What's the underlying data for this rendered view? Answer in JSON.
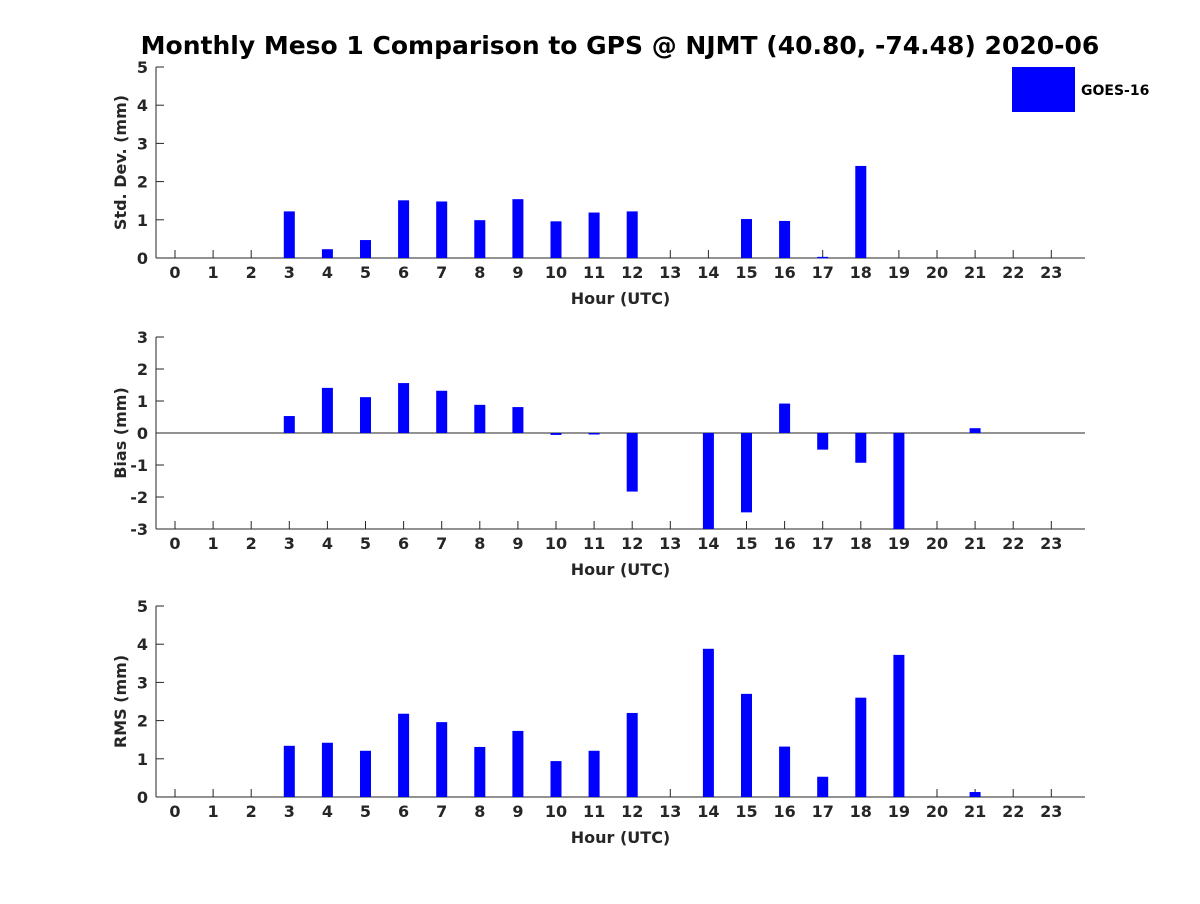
{
  "title": "Monthly Meso 1 Comparison to GPS @ NJMT (40.80, -74.48) 2020-06",
  "legend": {
    "label": "GOES-16",
    "color": "#0000ff"
  },
  "chart_data": [
    {
      "type": "bar",
      "ylabel": "Std. Dev. (mm)",
      "xlabel": "Hour (UTC)",
      "ylim": [
        0,
        5
      ],
      "yticks": [
        0,
        1,
        2,
        3,
        4,
        5
      ],
      "categories": [
        "0",
        "1",
        "2",
        "3",
        "4",
        "5",
        "6",
        "7",
        "8",
        "9",
        "10",
        "11",
        "12",
        "13",
        "14",
        "15",
        "16",
        "17",
        "18",
        "19",
        "20",
        "21",
        "22",
        "23"
      ],
      "series": [
        {
          "name": "GOES-16",
          "values": [
            null,
            null,
            null,
            1.22,
            0.23,
            0.47,
            1.51,
            1.48,
            0.99,
            1.54,
            0.96,
            1.19,
            1.22,
            null,
            null,
            1.02,
            0.97,
            0.03,
            2.41,
            null,
            null,
            null,
            null,
            null
          ]
        }
      ]
    },
    {
      "type": "bar",
      "ylabel": "Bias (mm)",
      "xlabel": "Hour (UTC)",
      "ylim": [
        -3,
        3
      ],
      "yticks": [
        -3,
        -2,
        -1,
        0,
        1,
        2,
        3
      ],
      "categories": [
        "0",
        "1",
        "2",
        "3",
        "4",
        "5",
        "6",
        "7",
        "8",
        "9",
        "10",
        "11",
        "12",
        "13",
        "14",
        "15",
        "16",
        "17",
        "18",
        "19",
        "20",
        "21",
        "22",
        "23"
      ],
      "series": [
        {
          "name": "GOES-16",
          "values": [
            null,
            null,
            null,
            0.53,
            1.41,
            1.12,
            1.56,
            1.32,
            0.88,
            0.81,
            -0.06,
            -0.02,
            -1.83,
            null,
            -3.0,
            -2.48,
            0.92,
            -0.52,
            -0.93,
            -3.0,
            null,
            0.15,
            null,
            null
          ]
        }
      ]
    },
    {
      "type": "bar",
      "ylabel": "RMS (mm)",
      "xlabel": "Hour (UTC)",
      "ylim": [
        0,
        5
      ],
      "yticks": [
        0,
        1,
        2,
        3,
        4,
        5
      ],
      "categories": [
        "0",
        "1",
        "2",
        "3",
        "4",
        "5",
        "6",
        "7",
        "8",
        "9",
        "10",
        "11",
        "12",
        "13",
        "14",
        "15",
        "16",
        "17",
        "18",
        "19",
        "20",
        "21",
        "22",
        "23"
      ],
      "series": [
        {
          "name": "GOES-16",
          "values": [
            null,
            null,
            null,
            1.34,
            1.42,
            1.21,
            2.18,
            1.96,
            1.31,
            1.73,
            0.94,
            1.21,
            2.2,
            null,
            3.88,
            2.7,
            1.32,
            0.53,
            2.6,
            3.72,
            null,
            0.13,
            null,
            null
          ]
        }
      ]
    }
  ]
}
